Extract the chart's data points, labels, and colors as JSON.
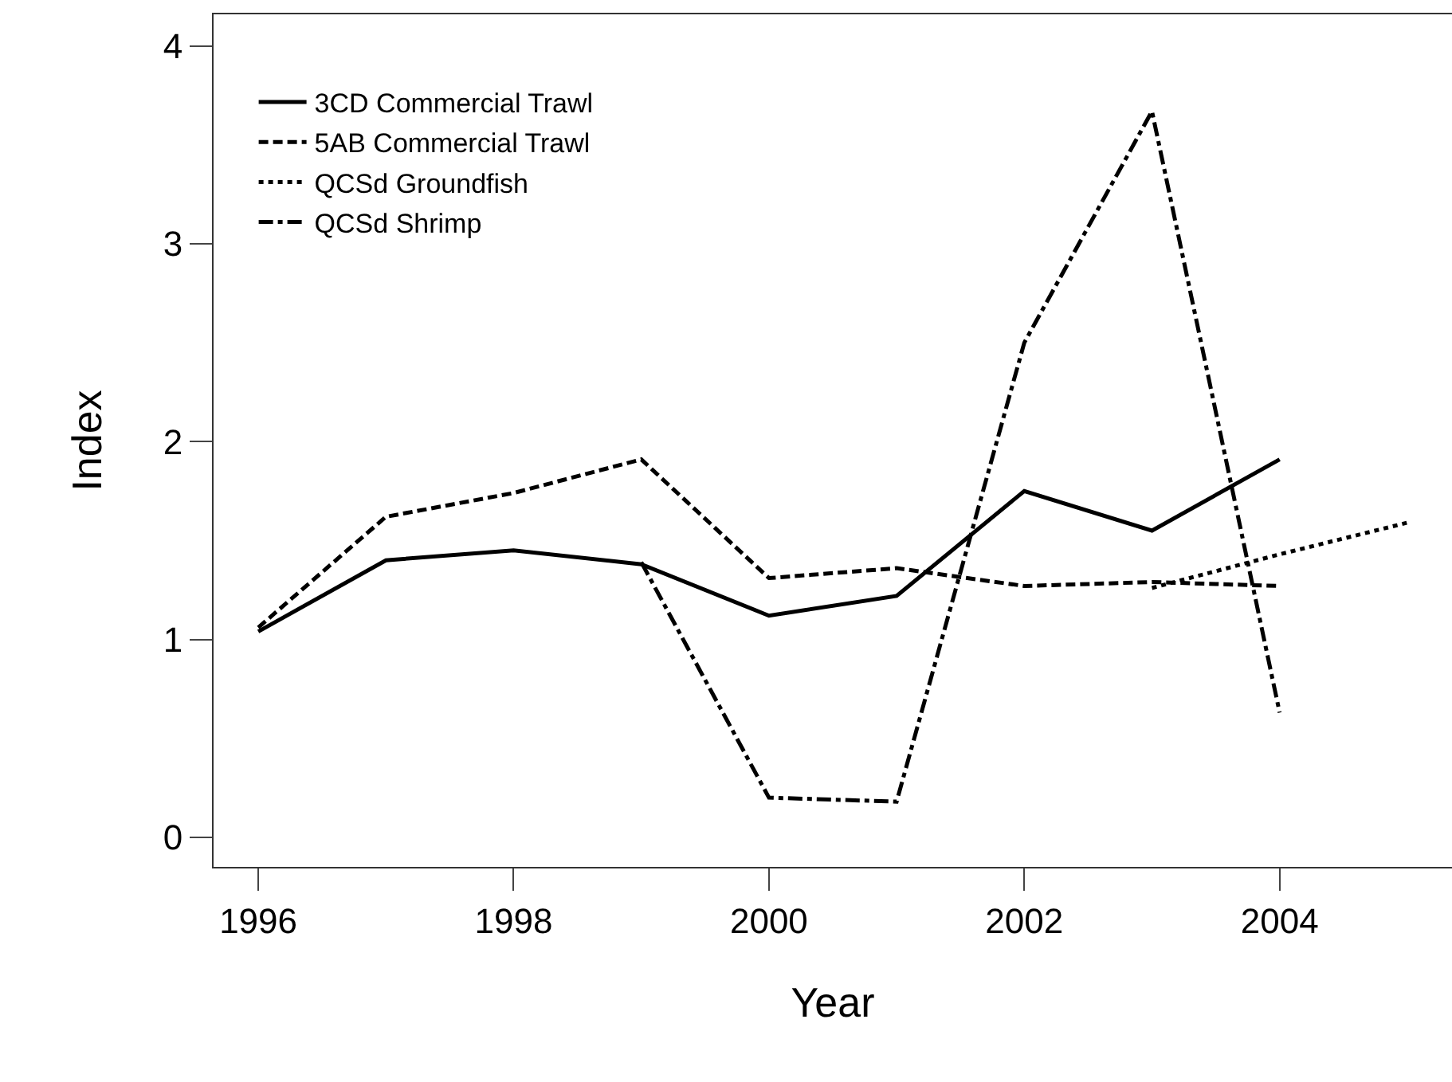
{
  "chart_data": {
    "type": "line",
    "xlabel": "Year",
    "ylabel": "Index",
    "xlim": [
      1995.65,
      2005.35
    ],
    "xticks": [
      1996,
      1998,
      2000,
      2002,
      2004
    ],
    "ylim": [
      -0.15,
      4.16
    ],
    "yticks": [
      0,
      1,
      2,
      3,
      4
    ],
    "legend": "top left",
    "marker": "none",
    "series": [
      {
        "name": "3CD Commercial Trawl",
        "color": "#000000",
        "line_style": "solid",
        "x": [
          1996,
          1997,
          1998,
          1999,
          2000,
          2001,
          2002,
          2003,
          2004
        ],
        "values": [
          1.04,
          1.4,
          1.45,
          1.38,
          1.12,
          1.22,
          1.75,
          1.55,
          1.91
        ]
      },
      {
        "name": "5AB Commercial Trawl",
        "color": "#000000",
        "line_style": "dashed",
        "x": [
          1996,
          1997,
          1998,
          1999,
          2000,
          2001,
          2002,
          2003,
          2004
        ],
        "values": [
          1.06,
          1.62,
          1.74,
          1.91,
          1.31,
          1.36,
          1.27,
          1.29,
          1.27
        ]
      },
      {
        "name": "QCSd Groundfish",
        "color": "#000000",
        "line_style": "dotted",
        "x": [
          2003,
          2004,
          2005
        ],
        "values": [
          1.26,
          1.43,
          1.59
        ]
      },
      {
        "name": "QCSd Shrimp",
        "color": "#000000",
        "line_style": "dashdot",
        "x": [
          1999,
          2000,
          2001,
          2002,
          2003,
          2004
        ],
        "values": [
          1.39,
          0.2,
          0.18,
          2.5,
          3.67,
          0.63
        ]
      }
    ]
  }
}
